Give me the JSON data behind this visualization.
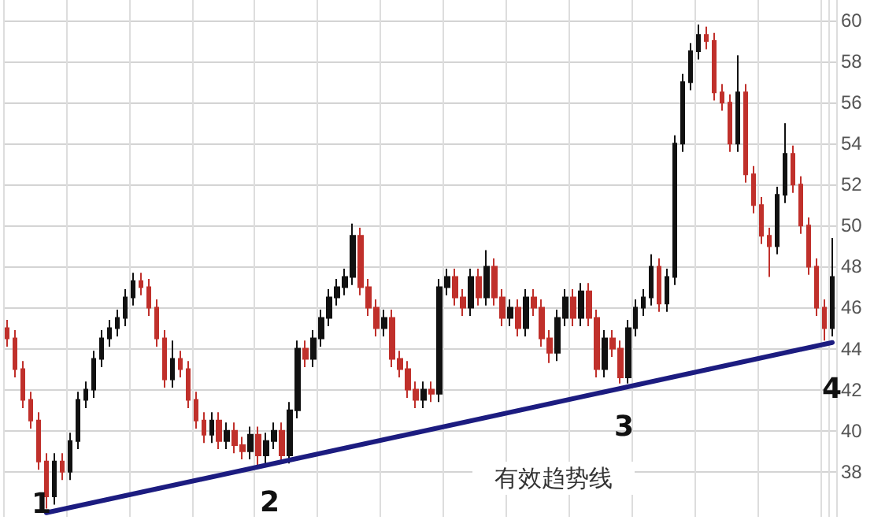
{
  "chart_data": {
    "type": "candlestick",
    "categories": [
      null,
      null,
      null,
      null,
      null,
      null,
      null,
      null,
      null,
      null,
      null,
      null,
      null,
      null,
      null,
      null,
      null,
      null,
      null,
      null,
      null,
      null,
      null,
      null,
      null,
      null,
      null,
      null,
      null,
      null,
      null,
      null,
      null,
      null,
      null,
      null,
      null,
      null,
      null,
      null,
      null,
      null,
      null,
      null,
      null,
      null,
      null,
      null,
      null,
      null,
      null,
      null,
      null,
      null,
      null,
      null,
      null,
      null,
      null,
      null,
      null,
      null,
      null,
      null,
      null,
      null,
      null,
      null,
      null,
      null,
      null,
      null,
      null,
      null,
      null,
      null,
      null,
      null,
      null,
      null,
      null,
      null,
      null,
      null,
      null,
      null,
      null,
      null,
      null,
      null,
      null,
      null,
      null,
      null,
      null,
      null,
      null,
      null,
      null,
      null,
      null,
      null,
      null,
      null,
      null,
      null
    ],
    "series": [
      {
        "ohlc": [
          [
            45,
            45.4,
            44.1,
            44.5
          ],
          [
            44.5,
            44.9,
            42.6,
            43
          ],
          [
            43,
            43.4,
            41.1,
            41.5
          ],
          [
            41.5,
            41.9,
            40.1,
            40.5
          ],
          [
            40.5,
            40.9,
            38.1,
            38.5
          ],
          [
            38.5,
            38.9,
            36.2,
            36.8
          ],
          [
            36.8,
            38.9,
            36.4,
            38.5
          ],
          [
            38.5,
            38.9,
            37.6,
            38
          ],
          [
            38,
            39.9,
            37.6,
            39.5
          ],
          [
            39.5,
            41.9,
            39.1,
            41.5
          ],
          [
            41.5,
            42.4,
            41.1,
            42
          ],
          [
            42,
            43.9,
            41.6,
            43.5
          ],
          [
            43.5,
            44.9,
            43.1,
            44.5
          ],
          [
            44.5,
            45.4,
            44.1,
            45
          ],
          [
            45,
            45.9,
            44.6,
            45.5
          ],
          [
            45.5,
            46.9,
            45.1,
            46.5
          ],
          [
            46.5,
            47.7,
            46.1,
            47.3
          ],
          [
            47.3,
            47.7,
            46.6,
            47
          ],
          [
            47,
            47.4,
            45.6,
            46
          ],
          [
            46,
            46.4,
            44.1,
            44.5
          ],
          [
            44.5,
            44.9,
            42.1,
            42.5
          ],
          [
            42.5,
            44.4,
            42.1,
            43.5
          ],
          [
            43.5,
            43.9,
            42.6,
            43
          ],
          [
            43,
            43.4,
            41.1,
            41.5
          ],
          [
            41.5,
            41.9,
            40.1,
            40.5
          ],
          [
            40.5,
            40.9,
            39.4,
            39.8
          ],
          [
            39.8,
            40.9,
            39.4,
            40.5
          ],
          [
            40.5,
            40.9,
            39.1,
            39.5
          ],
          [
            39.5,
            40.4,
            39.1,
            40
          ],
          [
            40,
            40.4,
            38.9,
            39.3
          ],
          [
            39.3,
            39.7,
            38.6,
            39
          ],
          [
            39,
            40.2,
            38.6,
            39.8
          ],
          [
            39.8,
            40.2,
            38.3,
            38.8
          ],
          [
            38.8,
            39.9,
            38.4,
            39.5
          ],
          [
            39.5,
            40.4,
            39.1,
            40
          ],
          [
            40,
            40.4,
            38.4,
            38.8
          ],
          [
            38.8,
            41.4,
            38.4,
            41
          ],
          [
            41,
            44.4,
            40.6,
            44
          ],
          [
            44,
            44.4,
            43.1,
            43.5
          ],
          [
            43.5,
            44.9,
            43.1,
            44.5
          ],
          [
            44.5,
            45.9,
            44.1,
            45.5
          ],
          [
            45.5,
            46.9,
            45.1,
            46.5
          ],
          [
            46.5,
            47.4,
            46.1,
            47
          ],
          [
            47,
            47.9,
            46.6,
            47.5
          ],
          [
            47.5,
            50.1,
            47.1,
            49.5
          ],
          [
            49.5,
            49.9,
            46.6,
            47
          ],
          [
            47,
            47.4,
            45.6,
            46
          ],
          [
            46,
            46.4,
            44.6,
            45
          ],
          [
            45,
            45.9,
            44.6,
            45.5
          ],
          [
            45.5,
            45.9,
            43.1,
            43.5
          ],
          [
            43.5,
            43.9,
            42.6,
            43
          ],
          [
            43,
            43.4,
            41.6,
            42
          ],
          [
            42,
            42.4,
            41.1,
            41.5
          ],
          [
            41.5,
            42.4,
            41.1,
            42
          ],
          [
            42,
            42.4,
            41.4,
            41.8
          ],
          [
            41.8,
            47.4,
            41.4,
            47
          ],
          [
            47,
            47.9,
            46.6,
            47.5
          ],
          [
            47.5,
            47.9,
            46.1,
            46.5
          ],
          [
            46.5,
            46.9,
            45.6,
            46
          ],
          [
            46,
            47.9,
            45.6,
            47.5
          ],
          [
            47.5,
            47.9,
            46.1,
            46.5
          ],
          [
            46.5,
            48.8,
            46.1,
            48
          ],
          [
            48,
            48.4,
            46.1,
            46.5
          ],
          [
            46.5,
            46.9,
            45.1,
            45.5
          ],
          [
            45.5,
            46.4,
            45.1,
            46
          ],
          [
            46,
            46.4,
            44.6,
            45
          ],
          [
            45,
            46.9,
            44.6,
            46.5
          ],
          [
            46.5,
            46.9,
            45.6,
            46
          ],
          [
            46,
            46.4,
            44.1,
            44.5
          ],
          [
            44.5,
            44.9,
            43.3,
            43.8
          ],
          [
            43.8,
            45.9,
            43.4,
            45.5
          ],
          [
            45.5,
            46.9,
            45.1,
            46.5
          ],
          [
            46.5,
            46.9,
            45.1,
            45.5
          ],
          [
            45.5,
            47.2,
            45.1,
            46.8
          ],
          [
            46.8,
            47.2,
            45.1,
            45.5
          ],
          [
            45.5,
            45.9,
            42.6,
            43
          ],
          [
            43,
            44.9,
            42.6,
            44.5
          ],
          [
            44.5,
            44.9,
            43.6,
            44
          ],
          [
            44,
            44.4,
            42.3,
            42.6
          ],
          [
            42.6,
            45.4,
            42.3,
            45
          ],
          [
            45,
            46.4,
            44.6,
            46
          ],
          [
            46,
            46.9,
            45.6,
            46.5
          ],
          [
            46.5,
            48.6,
            46.1,
            48
          ],
          [
            48,
            48.4,
            45.8,
            46.2
          ],
          [
            46.2,
            47.9,
            45.8,
            47.5
          ],
          [
            47.5,
            54.4,
            47.1,
            54
          ],
          [
            54,
            57.4,
            53.6,
            57
          ],
          [
            57,
            58.9,
            56.6,
            58.5
          ],
          [
            58.5,
            59.8,
            58.1,
            59.3
          ],
          [
            59.3,
            59.7,
            58.6,
            59
          ],
          [
            59,
            59.4,
            56.1,
            56.5
          ],
          [
            56.5,
            56.9,
            55.6,
            56
          ],
          [
            56,
            56.4,
            53.6,
            54
          ],
          [
            54,
            58.3,
            53.6,
            56.5
          ],
          [
            56.5,
            56.9,
            52.1,
            52.5
          ],
          [
            52.5,
            52.9,
            50.6,
            51
          ],
          [
            51,
            51.4,
            49.1,
            49.5
          ],
          [
            49.5,
            49.9,
            47.5,
            49
          ],
          [
            49,
            51.9,
            48.6,
            51.5
          ],
          [
            51.5,
            55,
            51.1,
            53.5
          ],
          [
            53.5,
            53.9,
            51.6,
            52
          ],
          [
            52,
            52.4,
            49.6,
            50
          ],
          [
            50,
            50.4,
            47.6,
            48
          ],
          [
            48,
            48.4,
            45.6,
            46
          ],
          [
            46,
            46.4,
            44.4,
            45
          ],
          [
            45,
            49.4,
            44.6,
            47.5
          ]
        ],
        "colors": [
          "#c0302b",
          "#c0302b",
          "#c0302b",
          "#c0302b",
          "#c0302b",
          "#c0302b",
          "#111111",
          "#c0302b",
          "#111111",
          "#111111",
          "#111111",
          "#111111",
          "#111111",
          "#111111",
          "#111111",
          "#111111",
          "#111111",
          "#c0302b",
          "#c0302b",
          "#c0302b",
          "#c0302b",
          "#111111",
          "#c0302b",
          "#c0302b",
          "#c0302b",
          "#c0302b",
          "#111111",
          "#c0302b",
          "#111111",
          "#c0302b",
          "#c0302b",
          "#111111",
          "#c0302b",
          "#111111",
          "#111111",
          "#c0302b",
          "#111111",
          "#111111",
          "#c0302b",
          "#111111",
          "#111111",
          "#111111",
          "#111111",
          "#111111",
          "#111111",
          "#c0302b",
          "#c0302b",
          "#c0302b",
          "#111111",
          "#c0302b",
          "#c0302b",
          "#c0302b",
          "#c0302b",
          "#111111",
          "#c0302b",
          "#111111",
          "#111111",
          "#c0302b",
          "#c0302b",
          "#111111",
          "#c0302b",
          "#111111",
          "#c0302b",
          "#c0302b",
          "#111111",
          "#c0302b",
          "#111111",
          "#c0302b",
          "#c0302b",
          "#c0302b",
          "#111111",
          "#111111",
          "#c0302b",
          "#111111",
          "#c0302b",
          "#c0302b",
          "#111111",
          "#c0302b",
          "#c0302b",
          "#111111",
          "#111111",
          "#111111",
          "#111111",
          "#c0302b",
          "#111111",
          "#111111",
          "#111111",
          "#111111",
          "#111111",
          "#c0302b",
          "#c0302b",
          "#c0302b",
          "#c0302b",
          "#111111",
          "#c0302b",
          "#c0302b",
          "#c0302b",
          "#c0302b",
          "#111111",
          "#111111",
          "#c0302b",
          "#c0302b",
          "#c0302b",
          "#c0302b",
          "#c0302b",
          "#111111"
        ]
      },
      {
        "type": "line",
        "color": "#1c1c80",
        "values": [
          null,
          null,
          null,
          null,
          null,
          36.0,
          null,
          null,
          null,
          null,
          null,
          null,
          null,
          null,
          null,
          null,
          null,
          null,
          null,
          null,
          null,
          null,
          null,
          null,
          null,
          null,
          null,
          null,
          null,
          null,
          null,
          null,
          null,
          null,
          null,
          null,
          null,
          null,
          null,
          null,
          null,
          null,
          null,
          null,
          null,
          null,
          null,
          null,
          null,
          null,
          null,
          null,
          null,
          null,
          null,
          null,
          null,
          null,
          null,
          null,
          null,
          null,
          null,
          null,
          null,
          null,
          null,
          null,
          null,
          null,
          null,
          null,
          null,
          null,
          null,
          null,
          null,
          null,
          null,
          null,
          null,
          null,
          null,
          null,
          null,
          null,
          null,
          null,
          null,
          null,
          null,
          null,
          null,
          null,
          null,
          null,
          null,
          null,
          null,
          null,
          null,
          null,
          null,
          null,
          null,
          44.3
        ]
      }
    ],
    "ylim": [
      35.8,
      61
    ],
    "yticks": [
      38,
      40,
      42,
      44,
      46,
      48,
      50,
      52,
      54,
      56,
      58,
      60
    ],
    "grid": true,
    "tick_labels": "y",
    "annotations": [
      "1",
      "2",
      "3",
      "4",
      "有效趋势线"
    ]
  }
}
